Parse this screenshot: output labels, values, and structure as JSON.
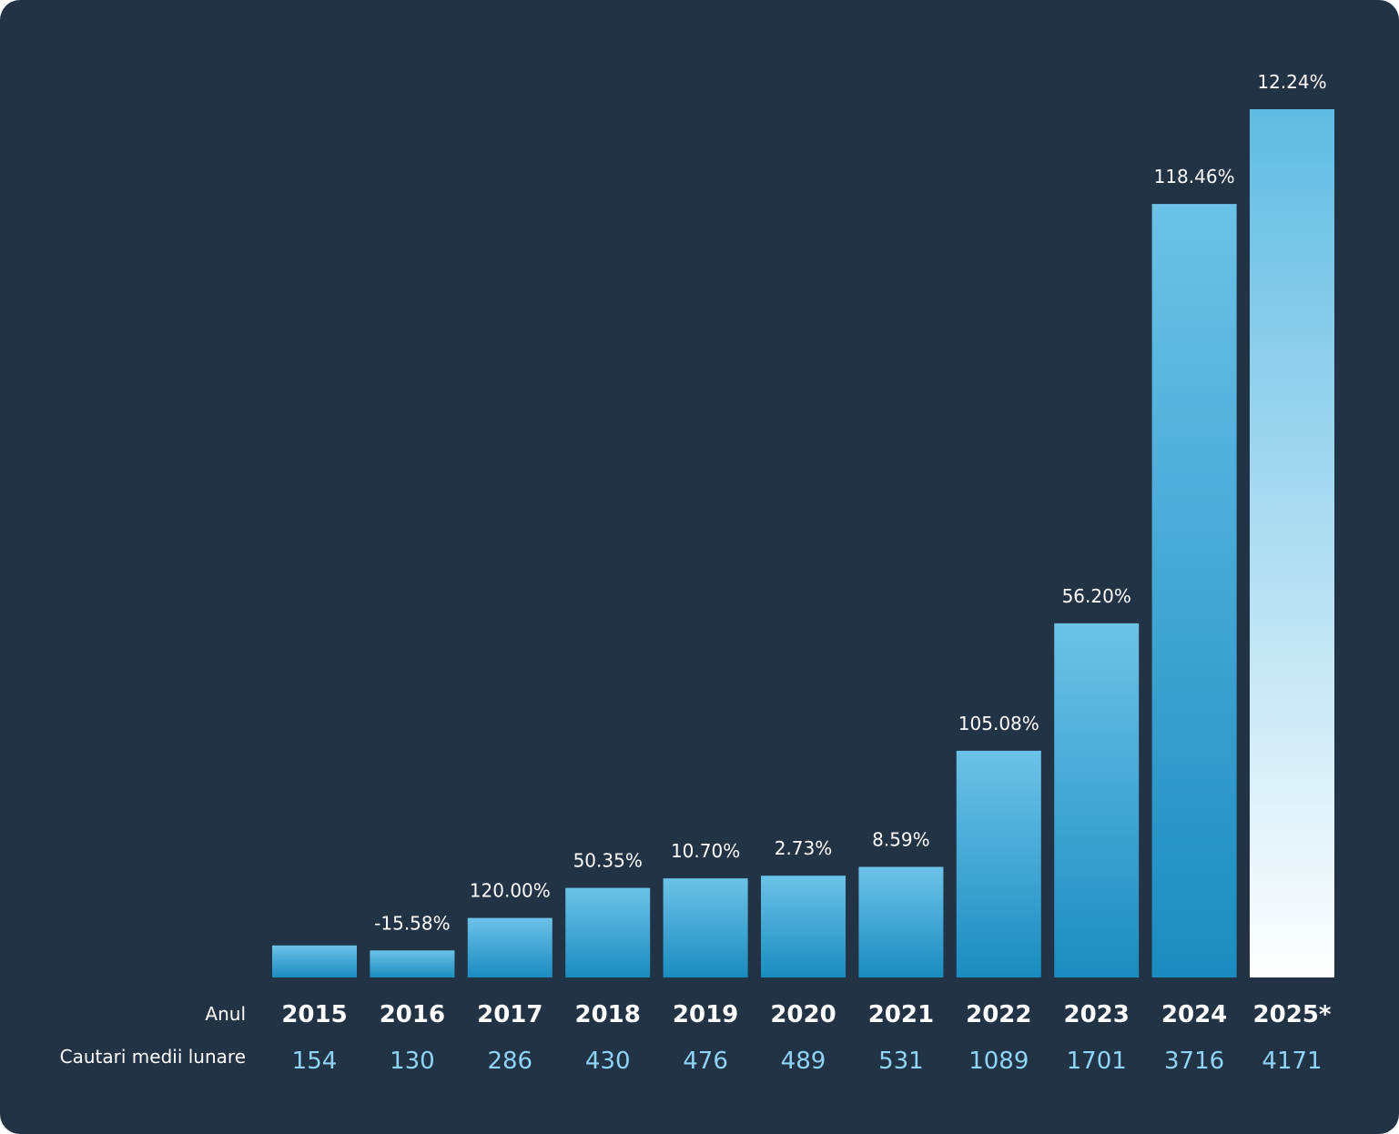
{
  "chart_data": {
    "type": "bar",
    "categories": [
      "2015",
      "2016",
      "2017",
      "2018",
      "2019",
      "2020",
      "2021",
      "2022",
      "2023",
      "2024",
      "2025*"
    ],
    "values": [
      154,
      130,
      286,
      430,
      476,
      489,
      531,
      1089,
      1701,
      3716,
      4171
    ],
    "changes": [
      "",
      "-15.58%",
      "120.00%",
      "50.35%",
      "10.70%",
      "2.73%",
      "8.59%",
      "105.08%",
      "56.20%",
      "118.46%",
      "12.24%"
    ],
    "row_labels": {
      "year": "Anul",
      "value": "Cautari medii lunare"
    },
    "highlight_category": "2025*",
    "colors": {
      "background": "#233346",
      "bar_top": "#6cc2e8",
      "bar_bottom": "#1a8cbf",
      "highlight_top": "#5fbbe3",
      "highlight_bottom": "#ffffff",
      "value_text": "#8fd3f6"
    },
    "grid": false,
    "legend": "none"
  }
}
